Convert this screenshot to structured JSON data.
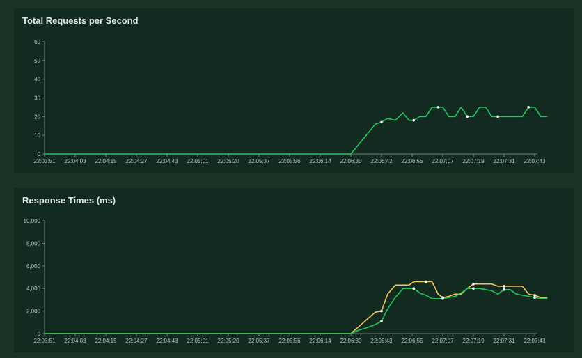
{
  "chart_data": [
    {
      "type": "line",
      "title": "Total Requests per Second",
      "xlabel": "",
      "ylabel": "",
      "ylim": [
        0,
        60
      ],
      "y_ticks": [
        "0",
        "10",
        "20",
        "30",
        "40",
        "50",
        "60"
      ],
      "x_ticks": [
        "22:03:51",
        "22:04:03",
        "22:04:15",
        "22:04:27",
        "22:04:43",
        "22:05:01",
        "22:05:20",
        "22:05:37",
        "22:05:56",
        "22:06:14",
        "22:06:30",
        "22:06:42",
        "22:06:55",
        "22:07:07",
        "22:07:19",
        "22:07:31",
        "22:07:43"
      ],
      "grid": false,
      "x": [
        0,
        1,
        2,
        3,
        4,
        5,
        6,
        7,
        8,
        9,
        10,
        10.25,
        10.5,
        10.8,
        11,
        11.2,
        11.45,
        11.7,
        11.9,
        12.05,
        12.25,
        12.45,
        12.65,
        12.85,
        13,
        13.2,
        13.4,
        13.6,
        13.8,
        14,
        14.2,
        14.4,
        14.6,
        14.8,
        15,
        15.2,
        15.4,
        15.6,
        15.8,
        16,
        16.2,
        16.4
      ],
      "series": [
        {
          "color": "#22c55e",
          "values": [
            0,
            0,
            0,
            0,
            0,
            0,
            0,
            0,
            0,
            0,
            0,
            5,
            10,
            16,
            17,
            19,
            18,
            22,
            18,
            18,
            20,
            20,
            25,
            25,
            25,
            20,
            20,
            25,
            20,
            20,
            25,
            25,
            20,
            20,
            20,
            20,
            20,
            20,
            25,
            25,
            20,
            20
          ],
          "markers": [
            14,
            19,
            23,
            28,
            33,
            38
          ]
        }
      ]
    },
    {
      "type": "line",
      "title": "Response Times (ms)",
      "xlabel": "",
      "ylabel": "",
      "ylim": [
        0,
        10000
      ],
      "y_ticks": [
        "0",
        "2,000",
        "4,000",
        "6,000",
        "8,000",
        "10,000"
      ],
      "x_ticks": [
        "22:03:51",
        "22:04:03",
        "22:04:15",
        "22:04:27",
        "22:04:43",
        "22:05:01",
        "22:05:20",
        "22:05:37",
        "22:05:56",
        "22:06:14",
        "22:06:30",
        "22:06:43",
        "22:06:55",
        "22:07:07",
        "22:07:19",
        "22:07:31",
        "22:07:43"
      ],
      "grid": false,
      "x": [
        0,
        1,
        2,
        3,
        4,
        5,
        6,
        7,
        8,
        9,
        10,
        10.25,
        10.5,
        10.8,
        11,
        11.2,
        11.45,
        11.7,
        11.9,
        12.05,
        12.25,
        12.45,
        12.65,
        12.85,
        13,
        13.2,
        13.4,
        13.6,
        13.8,
        14,
        14.2,
        14.4,
        14.6,
        14.8,
        15,
        15.2,
        15.4,
        15.6,
        15.8,
        16,
        16.2,
        16.4
      ],
      "series": [
        {
          "color": "#f4c55a",
          "values": [
            0,
            0,
            0,
            0,
            0,
            0,
            0,
            0,
            0,
            0,
            0,
            600,
            1200,
            1900,
            2000,
            3500,
            4300,
            4300,
            4300,
            4600,
            4600,
            4600,
            4600,
            3500,
            3200,
            3300,
            3500,
            3500,
            4000,
            4400,
            4400,
            4400,
            4400,
            4200,
            4200,
            4200,
            4200,
            4200,
            3500,
            3400,
            3200,
            3200
          ],
          "markers": [
            14,
            21,
            24,
            29,
            34,
            39
          ]
        },
        {
          "color": "#22c55e",
          "values": [
            0,
            0,
            0,
            0,
            0,
            0,
            0,
            0,
            0,
            0,
            0,
            300,
            500,
            800,
            1100,
            2200,
            3200,
            4000,
            4000,
            4000,
            3600,
            3400,
            3100,
            3100,
            3100,
            3200,
            3300,
            3600,
            4000,
            4000,
            4000,
            3900,
            3800,
            3500,
            3900,
            3900,
            3500,
            3400,
            3300,
            3200,
            3100,
            3100
          ],
          "markers": [
            14,
            19,
            24,
            29,
            34,
            39
          ]
        }
      ]
    }
  ]
}
